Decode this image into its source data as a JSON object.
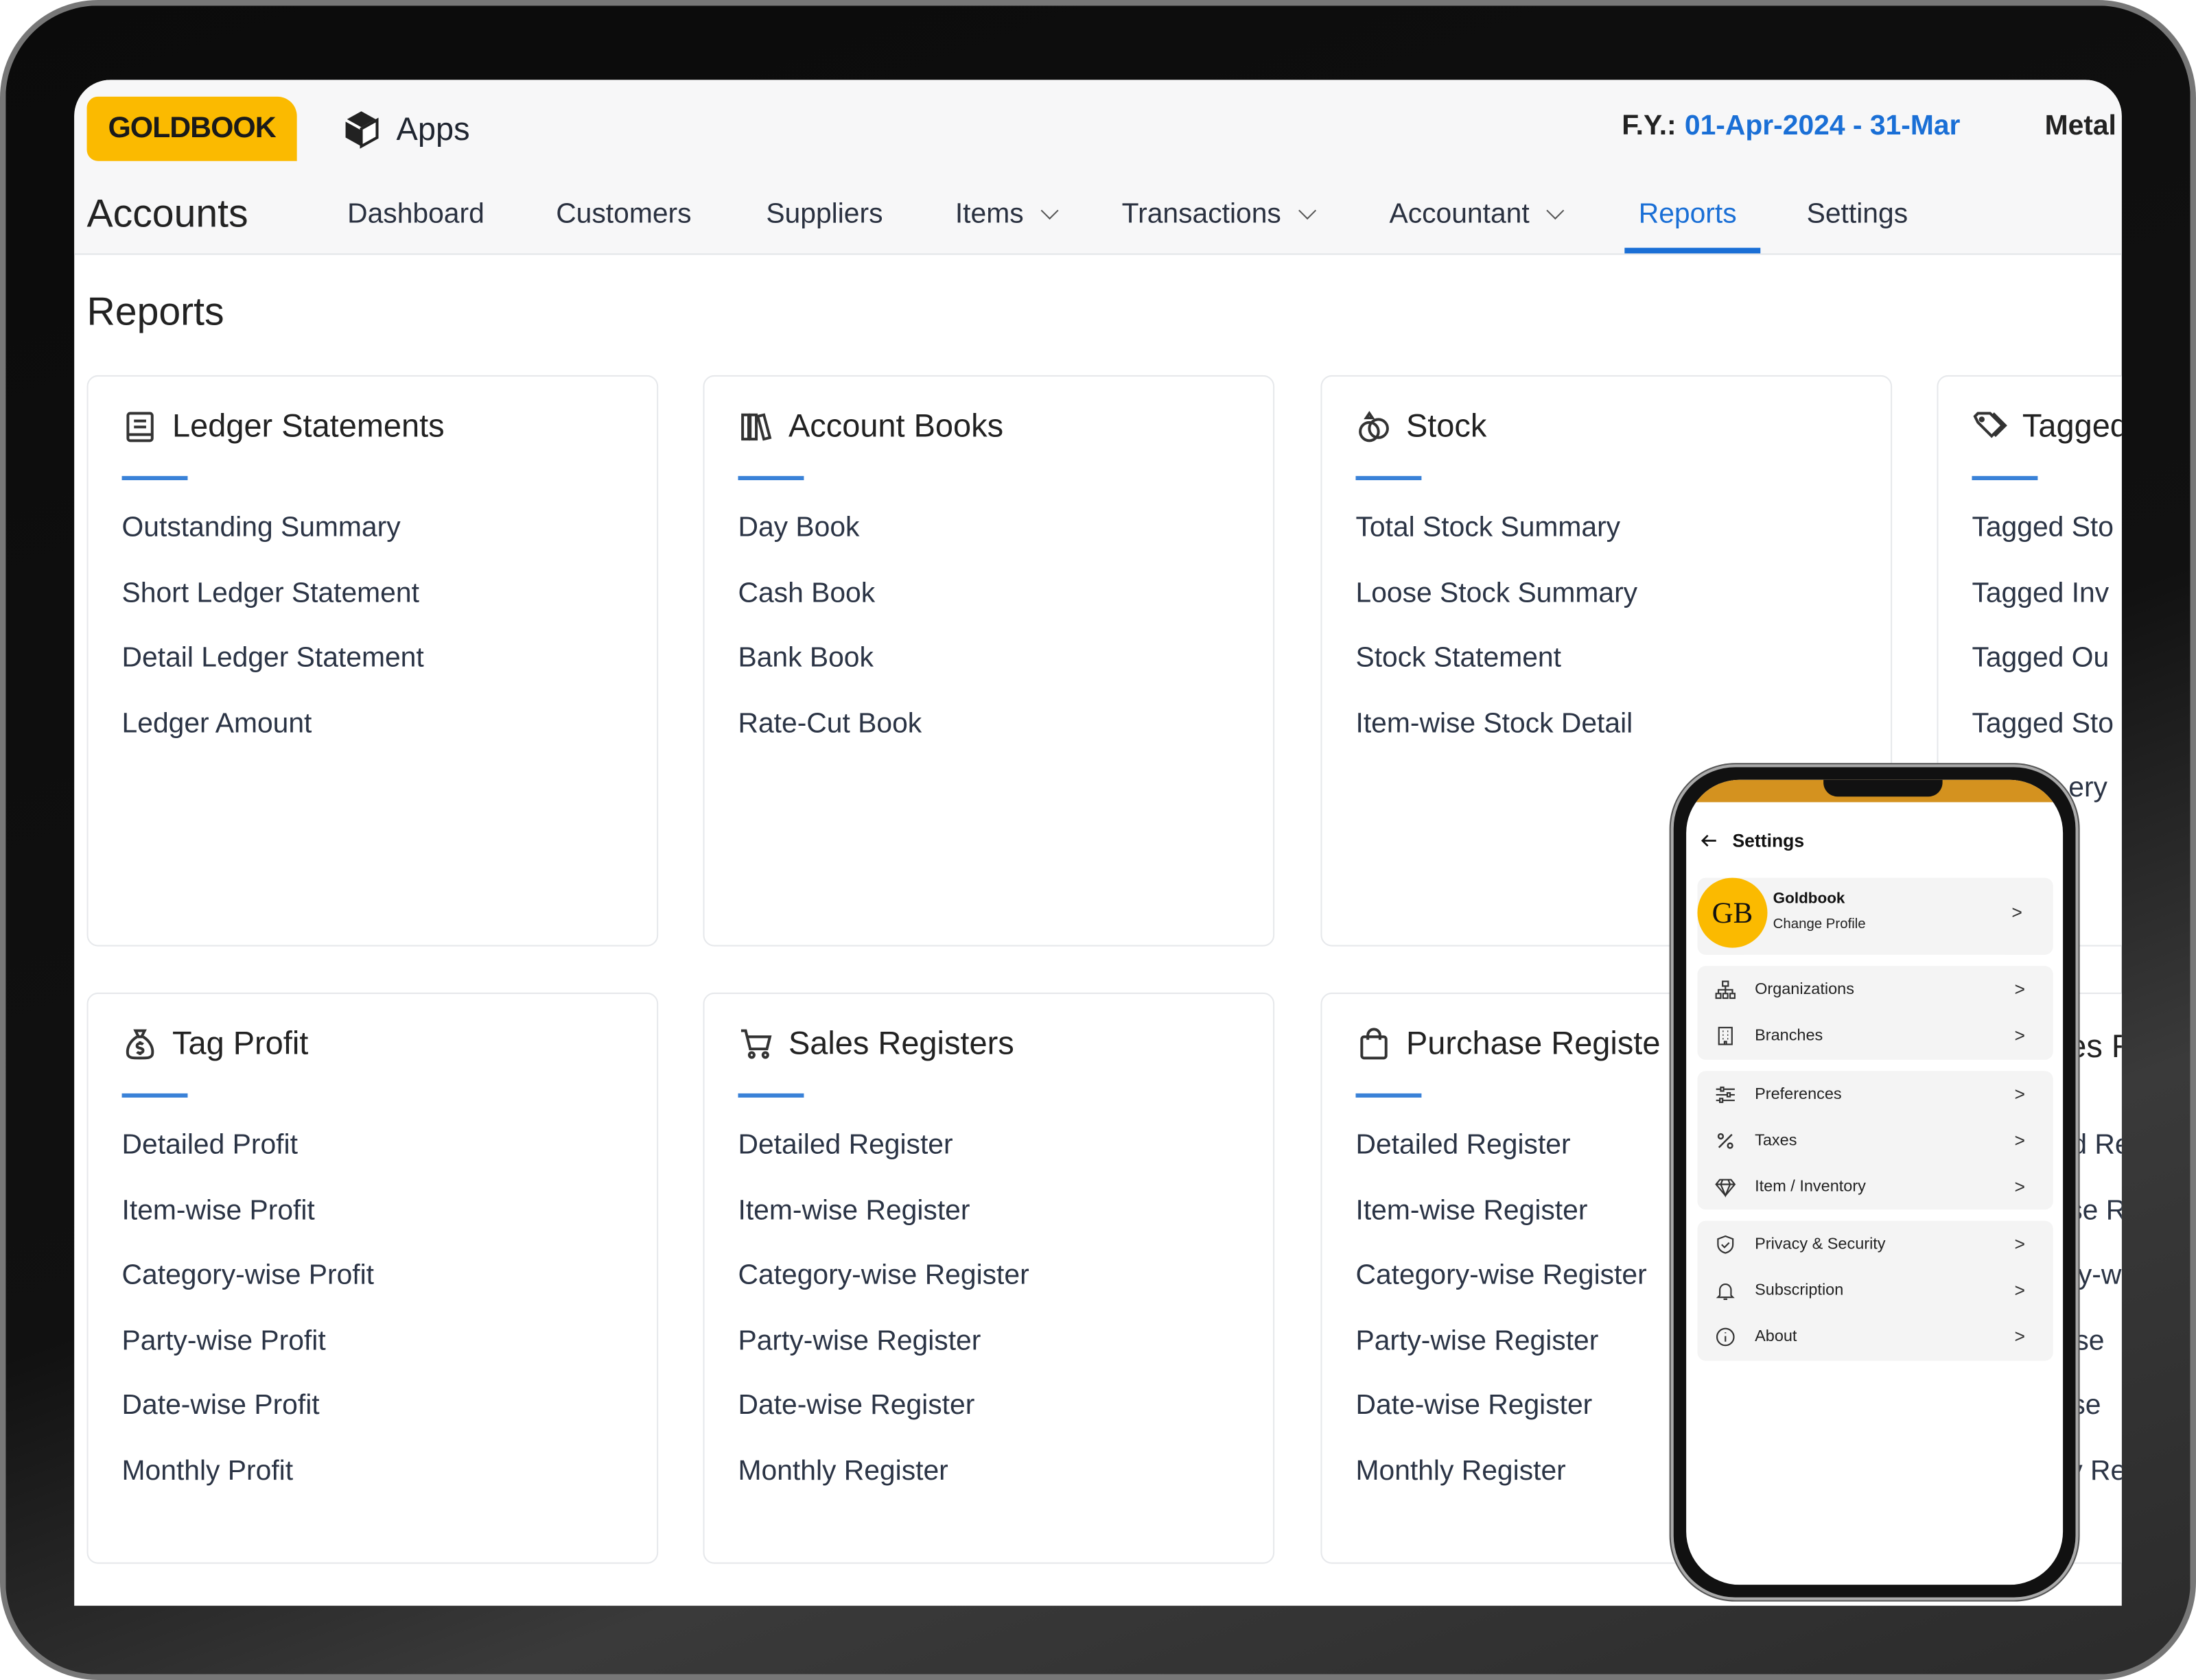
{
  "header": {
    "logo": "GOLDBOOK",
    "apps_label": "Apps",
    "fy_label": "F.Y.:",
    "fy_value": "01-Apr-2024 - 31-Mar",
    "metal_label": "Metal",
    "module": "Accounts",
    "nav": [
      {
        "label": "Dashboard"
      },
      {
        "label": "Customers"
      },
      {
        "label": "Suppliers"
      },
      {
        "label": "Items",
        "dropdown": true
      },
      {
        "label": "Transactions",
        "dropdown": true
      },
      {
        "label": "Accountant",
        "dropdown": true
      },
      {
        "label": "Reports",
        "active": true
      },
      {
        "label": "Settings"
      }
    ]
  },
  "page": {
    "title": "Reports"
  },
  "cards": [
    {
      "title": "Ledger Statements",
      "icon": "ledger-icon",
      "items": [
        "Outstanding Summary",
        "Short Ledger Statement",
        "Detail Ledger Statement",
        "Ledger Amount"
      ]
    },
    {
      "title": "Account Books",
      "icon": "books-icon",
      "items": [
        "Day Book",
        "Cash Book",
        "Bank Book",
        "Rate-Cut Book"
      ]
    },
    {
      "title": "Stock",
      "icon": "stock-icon",
      "items": [
        "Total Stock Summary",
        "Loose Stock Summary",
        "Stock Statement",
        "Item-wise Stock Detail"
      ]
    },
    {
      "title": "Tagged",
      "icon": "tags-icon",
      "items": [
        "Tagged Sto",
        "Tagged Inv",
        "Tagged Ou",
        "Tagged Sto",
        "ery"
      ]
    },
    {
      "title": "Tag Profit",
      "icon": "money-bag-icon",
      "items": [
        "Detailed Profit",
        "Item-wise Profit",
        "Category-wise Profit",
        "Party-wise Profit",
        "Date-wise Profit",
        "Monthly Profit"
      ]
    },
    {
      "title": "Sales Registers",
      "icon": "cart-icon",
      "items": [
        "Detailed Register",
        "Item-wise Register",
        "Category-wise Register",
        "Party-wise Register",
        "Date-wise Register",
        "Monthly Register"
      ]
    },
    {
      "title": "Purchase Registe",
      "icon": "shopping-bag-icon",
      "items": [
        "Detailed Register",
        "Item-wise Register",
        "Category-wise Register",
        "Party-wise Register",
        "Date-wise Register",
        "Monthly Register"
      ]
    },
    {
      "title": "es R",
      "items": [
        "d Re",
        "se R",
        "ry-w",
        "ise",
        "se",
        "y Re"
      ]
    }
  ],
  "phone": {
    "title": "Settings",
    "profile": {
      "initials": "GB",
      "name": "Goldbook",
      "action": "Change Profile"
    },
    "groups": [
      [
        {
          "label": "Organizations",
          "icon": "org-chart-icon"
        },
        {
          "label": "Branches",
          "icon": "building-icon"
        }
      ],
      [
        {
          "label": "Preferences",
          "icon": "sliders-icon"
        },
        {
          "label": "Taxes",
          "icon": "percent-icon"
        },
        {
          "label": "Item / Inventory",
          "icon": "diamond-icon"
        }
      ],
      [
        {
          "label": "Privacy & Security",
          "icon": "shield-icon"
        },
        {
          "label": "Subscription",
          "icon": "bell-icon"
        },
        {
          "label": "About",
          "icon": "info-icon"
        }
      ]
    ],
    "chevron": ">"
  },
  "colors": {
    "brand": "#fbba00",
    "accent": "#1a6fd6",
    "status_bar": "#d4921f"
  }
}
